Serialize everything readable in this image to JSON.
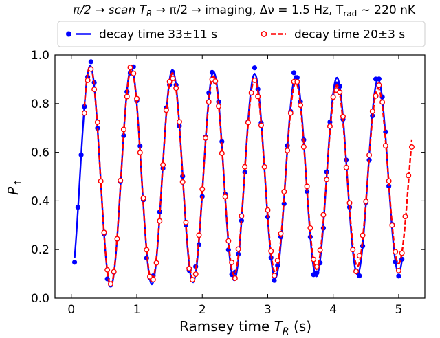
{
  "chart_data": {
    "type": "scatter",
    "title_parts": {
      "prefix": "π/2 → scan T",
      "sub1": "R",
      "middle": " → π/2 → imaging, Δν = 1.5 Hz, T",
      "sub2": "rad",
      "suffix": " ~ 220 nK"
    },
    "xlabel": {
      "main": "Ramsey time T",
      "sub": "R",
      "unit": " (s)"
    },
    "ylabel": {
      "main": "P",
      "sub": "↑"
    },
    "xlim": [
      -0.25,
      5.4
    ],
    "ylim": [
      0.0,
      1.0
    ],
    "xticks": [
      0,
      1,
      2,
      3,
      4,
      5
    ],
    "yticks": [
      0.0,
      0.2,
      0.4,
      0.6,
      0.8,
      1.0
    ],
    "xtick_labels": [
      "0",
      "1",
      "2",
      "3",
      "4",
      "5"
    ],
    "ytick_labels": [
      "0.0",
      "0.2",
      "0.4",
      "0.6",
      "0.8",
      "1.0"
    ],
    "legend_position": "top, above plot",
    "series": [
      {
        "name": "decay time 33±11 s",
        "color": "#0000ff",
        "marker": "filled-circle",
        "line": "solid",
        "fit": {
          "A": 0.46,
          "C": 0.5,
          "freq": 1.592,
          "phase": 3.4,
          "tau": 33
        },
        "x_start": 0.05,
        "x_end": 5.05,
        "x_step": 0.05
      },
      {
        "name": "decay time 20±3 s",
        "color": "#ff0000",
        "marker": "open-circle",
        "line": "dashed",
        "fit": {
          "A": 0.46,
          "C": 0.5,
          "freq": 1.592,
          "phase": 3.4,
          "tau": 20
        },
        "x_start": 0.2,
        "x_end": 5.2,
        "x_step": 0.05
      }
    ]
  }
}
